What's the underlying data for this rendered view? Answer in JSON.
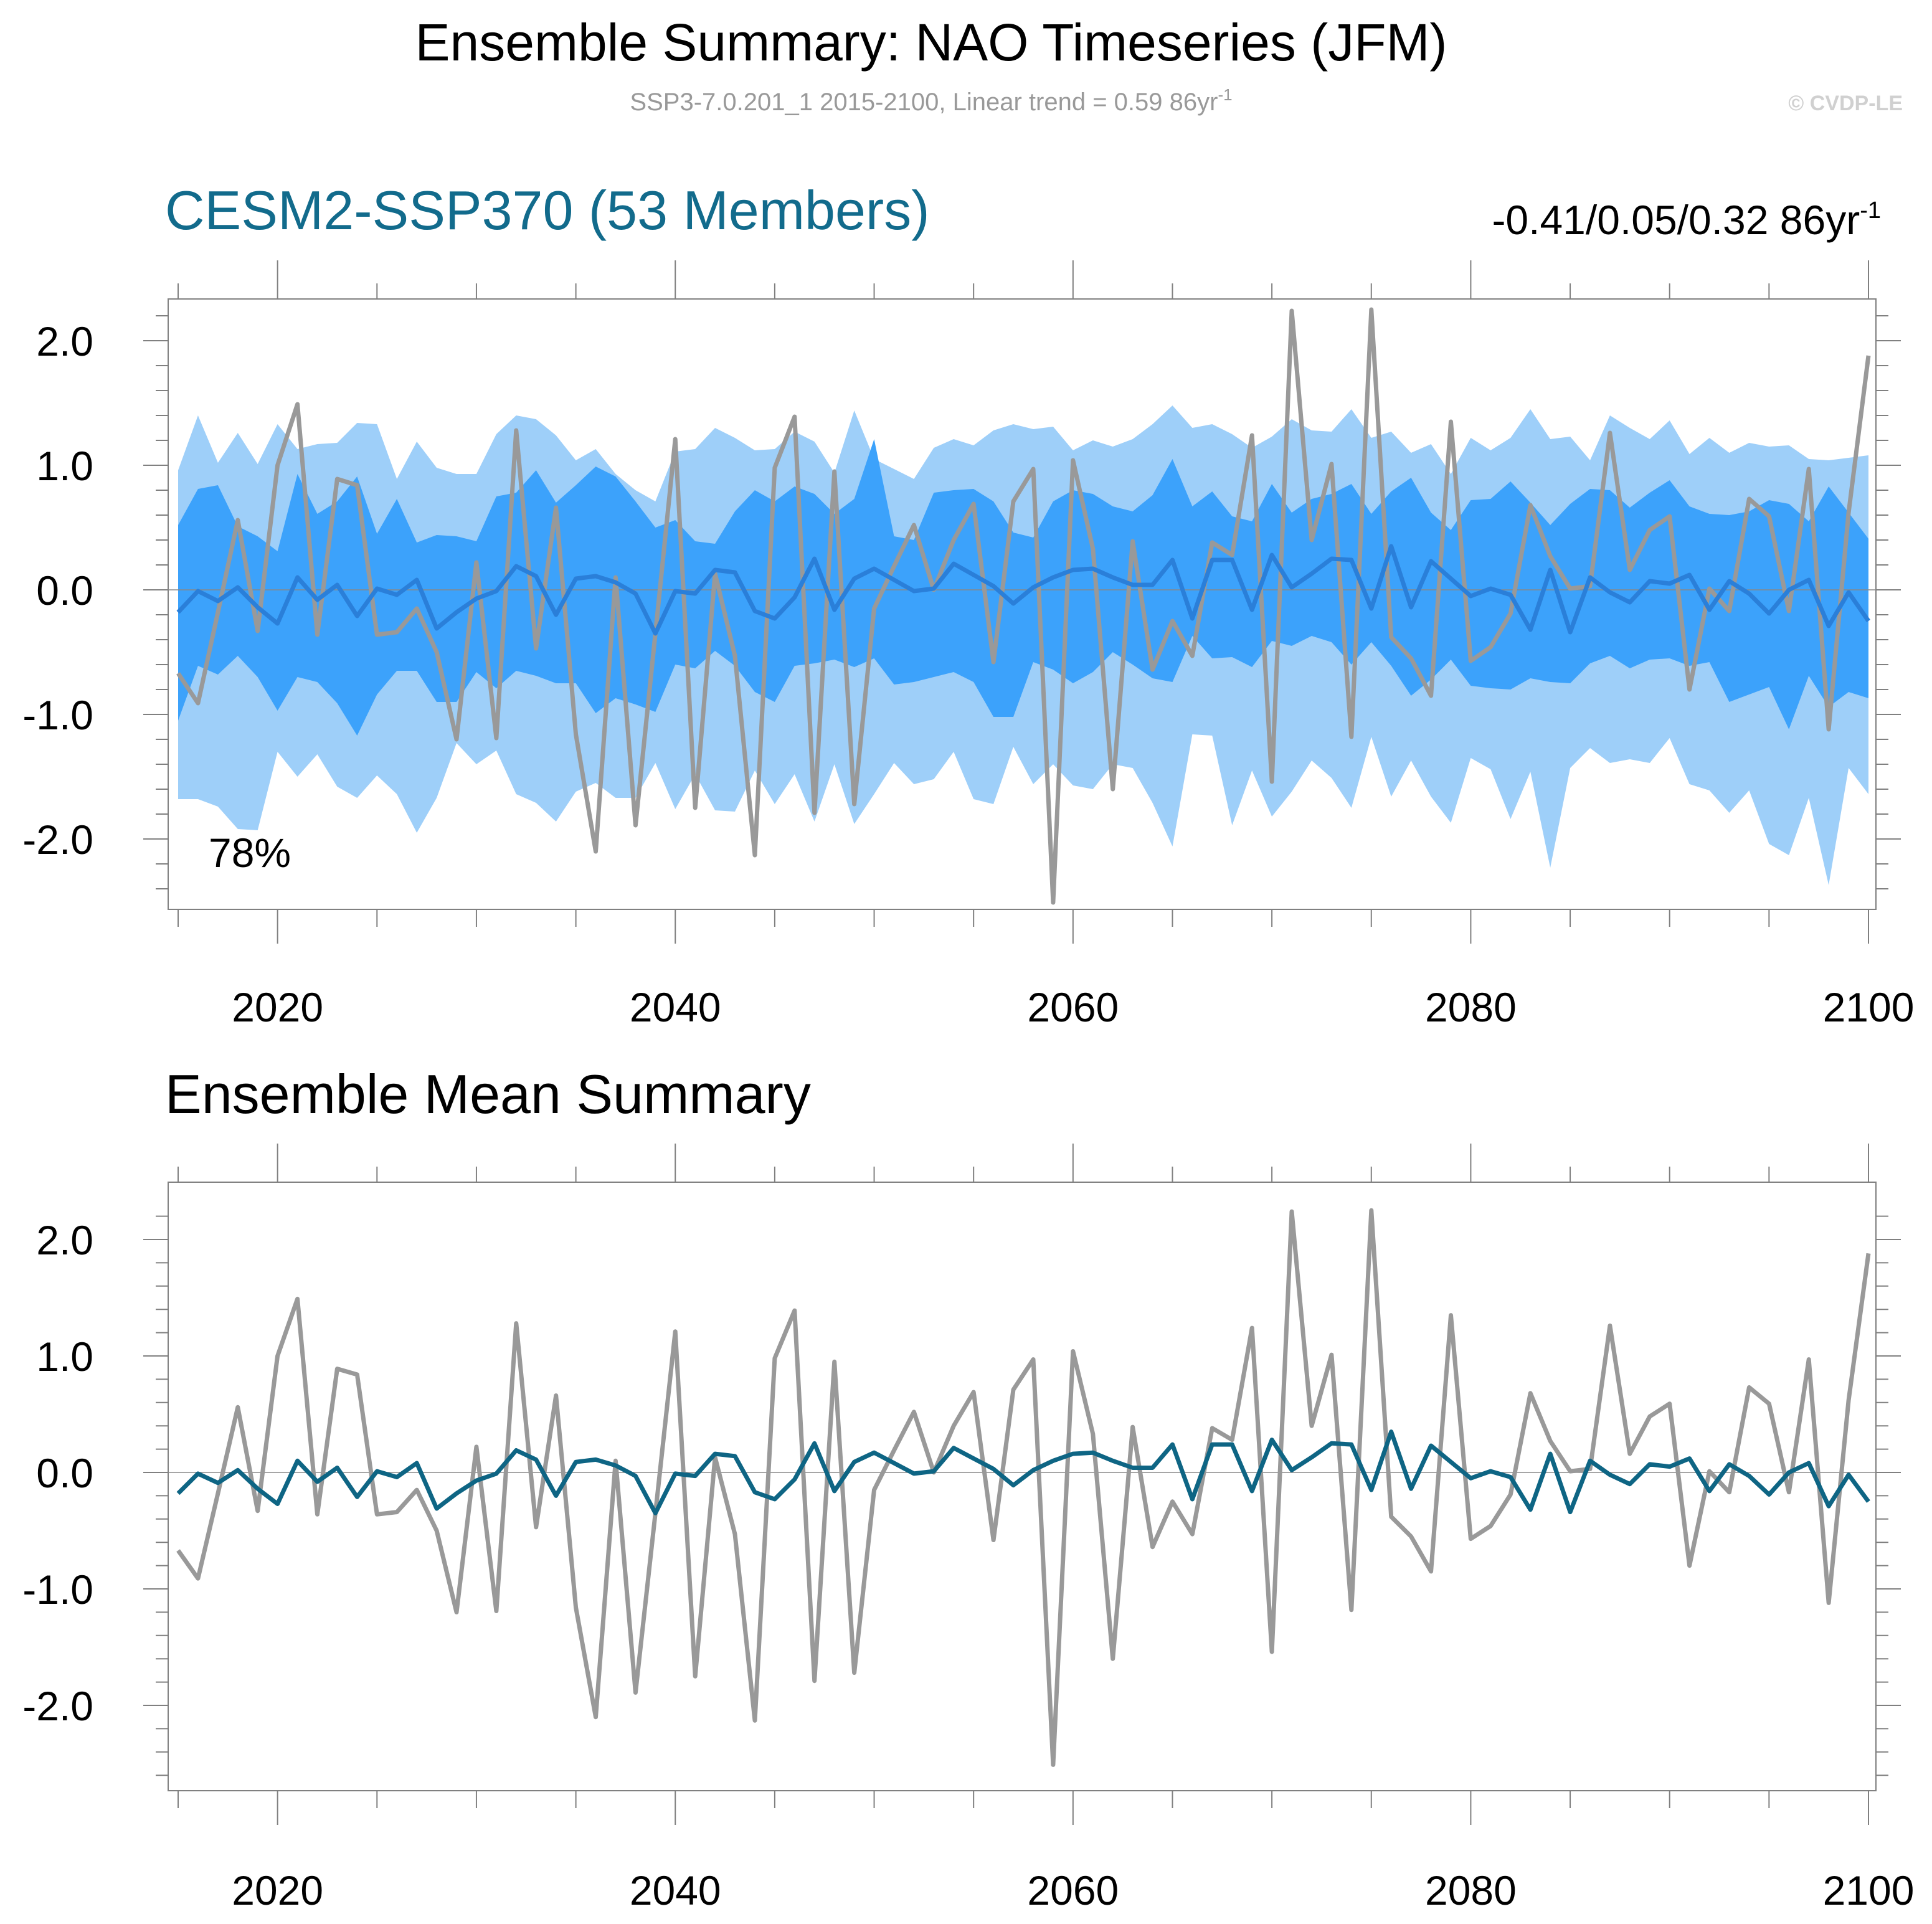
{
  "title": "Ensemble Summary: NAO Timeseries (JFM)",
  "subtitle": "SSP3-7.0.201_1 2015-2100, Linear trend = 0.59 86yr",
  "subtitle_sup": "-1",
  "watermark": "© CVDP-LE",
  "colors": {
    "obs": "#999999",
    "ens_mean_top": "#2a7fd9",
    "ens_mean_bottom": "#0e6584",
    "band_outer": "#9ecff9",
    "band_inner": "#3ca2fb",
    "model_title": "#126b8c",
    "zero_line": "#888888",
    "axis": "#808080"
  },
  "chart_data": [
    {
      "type": "line",
      "panel": "ensemble-spread",
      "title": "CESM2-SSP370 (53 Members)",
      "trend_text": "-0.41/0.05/0.32 86yr",
      "trend_sup": "-1",
      "annotation": "78%",
      "xlim": [
        2014,
        2100
      ],
      "ylim": [
        -2.6,
        2.3
      ],
      "xticks": [
        2020,
        2040,
        2060,
        2080,
        2100
      ],
      "yticks": [
        2.0,
        1.0,
        0.0,
        -1.0,
        -2.0
      ],
      "ytick_labels": [
        "2.0",
        "1.0",
        "0.0",
        "-1.0",
        "-2.0"
      ],
      "x_start": 2015,
      "series": [
        {
          "name": "Observations",
          "values": [
            -0.67,
            -0.91,
            -0.18,
            0.56,
            -0.33,
            1.0,
            1.49,
            -0.36,
            0.89,
            0.84,
            -0.36,
            -0.34,
            -0.15,
            -0.5,
            -1.2,
            0.22,
            -1.19,
            1.28,
            -0.47,
            0.66,
            -1.16,
            -2.1,
            0.1,
            -1.89,
            -0.35,
            1.21,
            -1.75,
            0.13,
            -0.53,
            -2.13,
            0.98,
            1.39,
            -1.79,
            0.95,
            -1.72,
            -0.15,
            0.19,
            0.52,
            0.0,
            0.4,
            0.69,
            -0.58,
            0.71,
            0.97,
            -2.51,
            1.04,
            0.33,
            -1.6,
            0.39,
            -0.64,
            -0.25,
            -0.53,
            0.38,
            0.28,
            1.24,
            -1.54,
            2.24,
            0.4,
            1.01,
            -1.18,
            2.25,
            -0.38,
            -0.55,
            -0.85,
            1.35,
            -0.57,
            -0.46,
            -0.19,
            0.68,
            0.27,
            0.01,
            0.03,
            1.26,
            0.16,
            0.48,
            0.59,
            -0.8,
            0.01,
            -0.17,
            0.73,
            0.59,
            -0.17,
            0.97,
            -1.12,
            0.62,
            1.88
          ]
        },
        {
          "name": "Ensemble Mean",
          "values": [
            -0.18,
            -0.01,
            -0.09,
            0.02,
            -0.14,
            -0.27,
            0.1,
            -0.08,
            0.04,
            -0.21,
            0.01,
            -0.04,
            0.08,
            -0.31,
            -0.18,
            -0.07,
            -0.01,
            0.19,
            0.11,
            -0.2,
            0.09,
            0.11,
            0.06,
            -0.03,
            -0.35,
            -0.01,
            -0.03,
            0.16,
            0.14,
            -0.17,
            -0.23,
            -0.06,
            0.25,
            -0.16,
            0.09,
            0.17,
            0.08,
            -0.01,
            0.01,
            0.21,
            0.12,
            0.03,
            -0.11,
            0.02,
            0.1,
            0.16,
            0.17,
            0.1,
            0.04,
            0.04,
            0.24,
            -0.23,
            0.24,
            0.24,
            -0.16,
            0.28,
            0.02,
            0.13,
            0.25,
            0.24,
            -0.15,
            0.35,
            -0.14,
            0.23,
            0.09,
            -0.05,
            0.01,
            -0.04,
            -0.32,
            0.16,
            -0.34,
            0.1,
            -0.02,
            -0.1,
            0.07,
            0.05,
            0.12,
            -0.16,
            0.07,
            -0.03,
            -0.19,
            0.0,
            0.08,
            -0.29,
            -0.02,
            -0.25
          ]
        },
        {
          "name": "Ensemble 2nd percentile",
          "values": [
            -1.68,
            -1.68,
            -1.74,
            -1.92,
            -1.93,
            -1.3,
            -1.5,
            -1.32,
            -1.58,
            -1.67,
            -1.49,
            -1.64,
            -1.95,
            -1.67,
            -1.23,
            -1.4,
            -1.29,
            -1.64,
            -1.71,
            -1.86,
            -1.62,
            -1.55,
            -1.67,
            -1.67,
            -1.39,
            -1.76,
            -1.48,
            -1.77,
            -1.78,
            -1.45,
            -1.72,
            -1.48,
            -1.86,
            -1.4,
            -1.88,
            -1.64,
            -1.39,
            -1.56,
            -1.52,
            -1.3,
            -1.68,
            -1.72,
            -1.26,
            -1.56,
            -1.4,
            -1.57,
            -1.6,
            -1.4,
            -1.43,
            -1.71,
            -2.06,
            -1.16,
            -1.17,
            -1.89,
            -1.45,
            -1.82,
            -1.62,
            -1.37,
            -1.51,
            -1.75,
            -1.18,
            -1.66,
            -1.37,
            -1.66,
            -1.87,
            -1.35,
            -1.44,
            -1.84,
            -1.46,
            -2.23,
            -1.43,
            -1.27,
            -1.39,
            -1.36,
            -1.39,
            -1.19,
            -1.56,
            -1.61,
            -1.79,
            -1.61,
            -2.04,
            -2.13,
            -1.67,
            -2.37,
            -1.43,
            -1.64
          ]
        },
        {
          "name": "Ensemble 16th percentile",
          "values": [
            -1.05,
            -0.61,
            -0.68,
            -0.53,
            -0.7,
            -0.97,
            -0.7,
            -0.74,
            -0.91,
            -1.17,
            -0.84,
            -0.65,
            -0.65,
            -0.9,
            -0.9,
            -0.66,
            -0.79,
            -0.65,
            -0.69,
            -0.75,
            -0.75,
            -0.99,
            -0.87,
            -0.92,
            -0.98,
            -0.6,
            -0.63,
            -0.49,
            -0.61,
            -0.82,
            -0.9,
            -0.61,
            -0.59,
            -0.56,
            -0.62,
            -0.55,
            -0.76,
            -0.74,
            -0.7,
            -0.66,
            -0.74,
            -1.02,
            -1.02,
            -0.58,
            -0.64,
            -0.75,
            -0.66,
            -0.5,
            -0.6,
            -0.71,
            -0.74,
            -0.37,
            -0.55,
            -0.54,
            -0.62,
            -0.41,
            -0.45,
            -0.37,
            -0.42,
            -0.6,
            -0.42,
            -0.61,
            -0.85,
            -0.72,
            -0.56,
            -0.77,
            -0.79,
            -0.8,
            -0.71,
            -0.74,
            -0.75,
            -0.59,
            -0.53,
            -0.63,
            -0.56,
            -0.55,
            -0.61,
            -0.58,
            -0.9,
            -0.84,
            -0.78,
            -1.12,
            -0.69,
            -0.94,
            -0.82,
            -0.87
          ]
        },
        {
          "name": "Ensemble 84th percentile",
          "values": [
            0.52,
            0.81,
            0.84,
            0.51,
            0.43,
            0.31,
            0.93,
            0.61,
            0.71,
            0.91,
            0.45,
            0.73,
            0.38,
            0.44,
            0.43,
            0.39,
            0.75,
            0.78,
            0.96,
            0.7,
            0.84,
            0.99,
            0.91,
            0.71,
            0.5,
            0.56,
            0.39,
            0.37,
            0.63,
            0.8,
            0.71,
            0.83,
            0.77,
            0.61,
            0.73,
            1.21,
            0.43,
            0.4,
            0.78,
            0.8,
            0.81,
            0.71,
            0.46,
            0.42,
            0.71,
            0.8,
            0.77,
            0.67,
            0.63,
            0.76,
            1.05,
            0.67,
            0.79,
            0.59,
            0.55,
            0.85,
            0.62,
            0.73,
            0.77,
            0.85,
            0.61,
            0.79,
            0.9,
            0.62,
            0.48,
            0.72,
            0.73,
            0.87,
            0.7,
            0.52,
            0.69,
            0.81,
            0.8,
            0.66,
            0.78,
            0.88,
            0.67,
            0.61,
            0.6,
            0.63,
            0.72,
            0.69,
            0.55,
            0.83,
            0.62,
            0.41
          ]
        },
        {
          "name": "Ensemble 98th percentile",
          "values": [
            0.96,
            1.4,
            1.02,
            1.26,
            1.01,
            1.33,
            1.13,
            1.17,
            1.18,
            1.34,
            1.33,
            0.89,
            1.19,
            0.98,
            0.93,
            0.93,
            1.25,
            1.4,
            1.37,
            1.24,
            1.04,
            1.13,
            0.93,
            0.8,
            0.71,
            1.11,
            1.13,
            1.3,
            1.22,
            1.12,
            1.13,
            1.27,
            1.19,
            0.94,
            1.44,
            1.05,
            0.97,
            0.89,
            1.14,
            1.21,
            1.16,
            1.28,
            1.33,
            1.29,
            1.31,
            1.12,
            1.2,
            1.15,
            1.21,
            1.33,
            1.48,
            1.3,
            1.33,
            1.25,
            1.14,
            1.23,
            1.37,
            1.28,
            1.27,
            1.45,
            1.22,
            1.27,
            1.1,
            1.17,
            0.93,
            1.22,
            1.12,
            1.22,
            1.45,
            1.21,
            1.23,
            1.04,
            1.4,
            1.3,
            1.21,
            1.36,
            1.09,
            1.22,
            1.1,
            1.18,
            1.15,
            1.16,
            1.05,
            1.04,
            1.06,
            1.08
          ]
        }
      ]
    },
    {
      "type": "line",
      "panel": "ensemble-mean",
      "title": "Ensemble Mean Summary",
      "xlim": [
        2014,
        2100
      ],
      "ylim": [
        -2.6,
        2.3
      ],
      "xticks": [
        2020,
        2040,
        2060,
        2080,
        2100
      ],
      "yticks": [
        2.0,
        1.0,
        0.0,
        -1.0,
        -2.0
      ],
      "ytick_labels": [
        "2.0",
        "1.0",
        "0.0",
        "-1.0",
        "-2.0"
      ],
      "x_start": 2015,
      "series": [
        {
          "name": "Observations",
          "values": [
            -0.67,
            -0.91,
            -0.18,
            0.56,
            -0.33,
            1.0,
            1.49,
            -0.36,
            0.89,
            0.84,
            -0.36,
            -0.34,
            -0.15,
            -0.5,
            -1.2,
            0.22,
            -1.19,
            1.28,
            -0.47,
            0.66,
            -1.16,
            -2.1,
            0.1,
            -1.89,
            -0.35,
            1.21,
            -1.75,
            0.13,
            -0.53,
            -2.13,
            0.98,
            1.39,
            -1.79,
            0.95,
            -1.72,
            -0.15,
            0.19,
            0.52,
            0.0,
            0.4,
            0.69,
            -0.58,
            0.71,
            0.97,
            -2.51,
            1.04,
            0.33,
            -1.6,
            0.39,
            -0.64,
            -0.25,
            -0.53,
            0.38,
            0.28,
            1.24,
            -1.54,
            2.24,
            0.4,
            1.01,
            -1.18,
            2.25,
            -0.38,
            -0.55,
            -0.85,
            1.35,
            -0.57,
            -0.46,
            -0.19,
            0.68,
            0.27,
            0.01,
            0.03,
            1.26,
            0.16,
            0.48,
            0.59,
            -0.8,
            0.01,
            -0.17,
            0.73,
            0.59,
            -0.17,
            0.97,
            -1.12,
            0.62,
            1.88
          ]
        },
        {
          "name": "Ensemble Mean",
          "values": [
            -0.18,
            -0.01,
            -0.09,
            0.02,
            -0.14,
            -0.27,
            0.1,
            -0.08,
            0.04,
            -0.21,
            0.01,
            -0.04,
            0.08,
            -0.31,
            -0.18,
            -0.07,
            -0.01,
            0.19,
            0.11,
            -0.2,
            0.09,
            0.11,
            0.06,
            -0.03,
            -0.35,
            -0.01,
            -0.03,
            0.16,
            0.14,
            -0.17,
            -0.23,
            -0.06,
            0.25,
            -0.16,
            0.09,
            0.17,
            0.08,
            -0.01,
            0.01,
            0.21,
            0.12,
            0.03,
            -0.11,
            0.02,
            0.1,
            0.16,
            0.17,
            0.1,
            0.04,
            0.04,
            0.24,
            -0.23,
            0.24,
            0.24,
            -0.16,
            0.28,
            0.02,
            0.13,
            0.25,
            0.24,
            -0.15,
            0.35,
            -0.14,
            0.23,
            0.09,
            -0.05,
            0.01,
            -0.04,
            -0.32,
            0.16,
            -0.34,
            0.1,
            -0.02,
            -0.1,
            0.07,
            0.05,
            0.12,
            -0.16,
            0.07,
            -0.03,
            -0.19,
            0.0,
            0.08,
            -0.29,
            -0.02,
            -0.25
          ]
        }
      ]
    }
  ]
}
